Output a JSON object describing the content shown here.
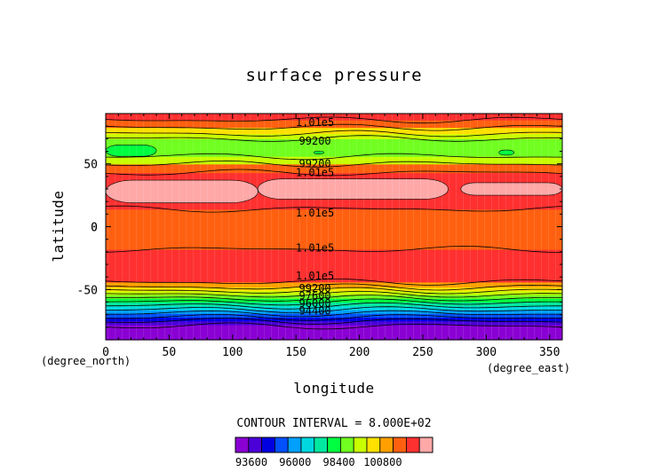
{
  "chart_data": {
    "type": "heatmap",
    "title": "surface pressure",
    "xlabel": "longitude",
    "ylabel": "latitude",
    "x_unit": "(degree_east)",
    "y_unit": "(degree_north)",
    "xlim": [
      0,
      360
    ],
    "ylim": [
      -90,
      90
    ],
    "x_ticks": [
      0,
      50,
      100,
      150,
      200,
      250,
      300,
      350
    ],
    "y_ticks": [
      -50,
      0,
      50
    ],
    "contour_interval_text": "CONTOUR INTERVAL = 8.000E+02",
    "contour_interval": 800,
    "levels": [
      93600,
      94400,
      95200,
      96000,
      96800,
      97600,
      98400,
      99200,
      100000,
      100800,
      101600
    ],
    "colorbar": {
      "colors": [
        "#8a00d4",
        "#4b00d8",
        "#0000e0",
        "#0050ff",
        "#00a0ff",
        "#00d8e0",
        "#00e8a0",
        "#00ff40",
        "#70ff20",
        "#c8ff00",
        "#ffe000",
        "#ffa000",
        "#ff6010",
        "#ff3030",
        "#ffa8a8"
      ],
      "tick_values": [
        93600,
        96000,
        98400,
        100800
      ],
      "tick_labels": [
        "93600",
        "96000",
        "98400",
        "100800"
      ]
    },
    "bands": [
      {
        "lat_min": -90,
        "lat_max": -78,
        "color": "#8a00d4"
      },
      {
        "lat_min": -78,
        "lat_max": -75,
        "color": "#4b00d8"
      },
      {
        "lat_min": -75,
        "lat_max": -72,
        "color": "#0000e0"
      },
      {
        "lat_min": -72,
        "lat_max": -69,
        "color": "#0050ff"
      },
      {
        "lat_min": -69,
        "lat_max": -66,
        "color": "#00a0ff"
      },
      {
        "lat_min": -66,
        "lat_max": -63,
        "color": "#00d8e0"
      },
      {
        "lat_min": -63,
        "lat_max": -60,
        "color": "#00e8a0"
      },
      {
        "lat_min": -60,
        "lat_max": -57,
        "color": "#00ff40"
      },
      {
        "lat_min": -57,
        "lat_max": -54,
        "color": "#70ff20"
      },
      {
        "lat_min": -54,
        "lat_max": -51,
        "color": "#c8ff00"
      },
      {
        "lat_min": -51,
        "lat_max": -48,
        "color": "#ffe000"
      },
      {
        "lat_min": -48,
        "lat_max": -44,
        "color": "#ffa000"
      },
      {
        "lat_min": -44,
        "lat_max": -18,
        "color": "#ff3030"
      },
      {
        "lat_min": -18,
        "lat_max": 14,
        "color": "#ff6010"
      },
      {
        "lat_min": 14,
        "lat_max": 43,
        "color": "#ff3030"
      },
      {
        "lat_min": 43,
        "lat_max": 50,
        "color": "#ff6010"
      },
      {
        "lat_min": 50,
        "lat_max": 56,
        "color": "#c8ff00"
      },
      {
        "lat_min": 56,
        "lat_max": 70,
        "color": "#70ff20"
      },
      {
        "lat_min": 70,
        "lat_max": 74,
        "color": "#c8ff00"
      },
      {
        "lat_min": 74,
        "lat_max": 79,
        "color": "#ffe000"
      },
      {
        "lat_min": 79,
        "lat_max": 85,
        "color": "#ff6010"
      },
      {
        "lat_min": 85,
        "lat_max": 90,
        "color": "#ff3030"
      }
    ],
    "patches": [
      {
        "lon": [
          0,
          120
        ],
        "lat": [
          19,
          37
        ],
        "color": "#ffa8a8"
      },
      {
        "lon": [
          120,
          270
        ],
        "lat": [
          22,
          38
        ],
        "color": "#ffa8a8"
      },
      {
        "lon": [
          280,
          360
        ],
        "lat": [
          25,
          35
        ],
        "color": "#ffa8a8"
      },
      {
        "lon": [
          0,
          40
        ],
        "lat": [
          56,
          65
        ],
        "color": "#00ff40"
      },
      {
        "lon": [
          310,
          322
        ],
        "lat": [
          57,
          61
        ],
        "color": "#00ff40"
      },
      {
        "lon": [
          164,
          172
        ],
        "lat": [
          58,
          60
        ],
        "color": "#00ff40"
      }
    ],
    "contour_lines": [
      -79,
      -75,
      -72,
      -69,
      -66,
      -63,
      -60,
      -57,
      -54,
      -51,
      -48,
      -44,
      -18,
      14,
      43,
      50,
      56,
      70,
      74,
      79,
      85
    ],
    "contour_labels": [
      {
        "text": "1.01e5",
        "lon": 165,
        "lat": 83
      },
      {
        "text": "99200",
        "lon": 165,
        "lat": 68
      },
      {
        "text": "99200",
        "lon": 165,
        "lat": 50
      },
      {
        "text": "1.01e5",
        "lon": 165,
        "lat": 43
      },
      {
        "text": "1.01e5",
        "lon": 165,
        "lat": 11
      },
      {
        "text": "1.01e5",
        "lon": 165,
        "lat": -17
      },
      {
        "text": "1.01e5",
        "lon": 165,
        "lat": -39
      },
      {
        "text": "99200",
        "lon": 165,
        "lat": -49
      },
      {
        "text": "97600",
        "lon": 165,
        "lat": -55
      },
      {
        "text": "96000",
        "lon": 165,
        "lat": -61
      },
      {
        "text": "94400",
        "lon": 165,
        "lat": -67
      }
    ]
  }
}
